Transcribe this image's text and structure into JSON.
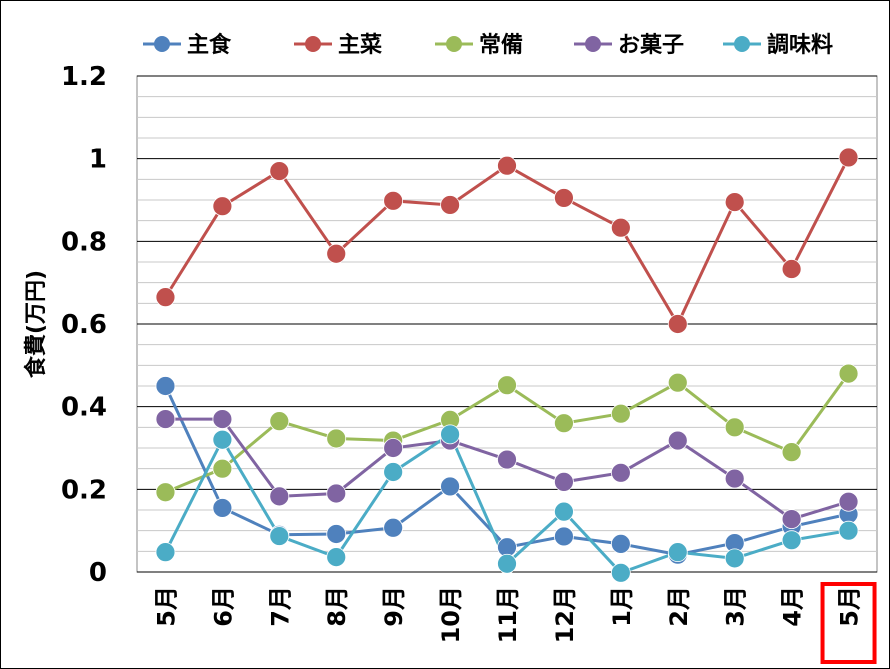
{
  "chart_data": {
    "type": "line",
    "title": "",
    "xlabel": "",
    "ylabel": "食費(万円)",
    "categories": [
      "5月",
      "6月",
      "7月",
      "8月",
      "9月",
      "10月",
      "11月",
      "12月",
      "1月",
      "2月",
      "3月",
      "4月",
      "5月"
    ],
    "ylim": [
      0,
      1.2
    ],
    "y_ticks": [
      "0",
      "0.2",
      "0.4",
      "0.6",
      "0.8",
      "1",
      "1.2"
    ],
    "grid": "horizontal",
    "legend_position": "top",
    "highlighted_category_index": 12,
    "highlight_color": "#ff0000",
    "series": [
      {
        "name": "主食",
        "color": "#4f81bd",
        "values": [
          0.45,
          0.155,
          0.09,
          0.092,
          0.107,
          0.207,
          0.06,
          0.086,
          0.068,
          0.042,
          0.07,
          0.11,
          0.14
        ]
      },
      {
        "name": "主菜",
        "color": "#c0504d",
        "values": [
          0.665,
          0.885,
          0.97,
          0.77,
          0.898,
          0.888,
          0.983,
          0.905,
          0.833,
          0.6,
          0.895,
          0.733,
          1.003
        ]
      },
      {
        "name": "常備",
        "color": "#9bbb59",
        "values": [
          0.193,
          0.25,
          0.365,
          0.323,
          0.318,
          0.368,
          0.452,
          0.36,
          0.383,
          0.458,
          0.35,
          0.29,
          0.48
        ]
      },
      {
        "name": "お菓子",
        "color": "#8064a2",
        "values": [
          0.37,
          0.37,
          0.183,
          0.19,
          0.3,
          0.318,
          0.272,
          0.218,
          0.24,
          0.318,
          0.226,
          0.128,
          0.17
        ]
      },
      {
        "name": "調味料",
        "color": "#4bacc6",
        "values": [
          0.048,
          0.32,
          0.087,
          0.036,
          0.242,
          0.333,
          0.02,
          0.146,
          -0.002,
          0.048,
          0.033,
          0.077,
          0.1
        ]
      }
    ]
  }
}
